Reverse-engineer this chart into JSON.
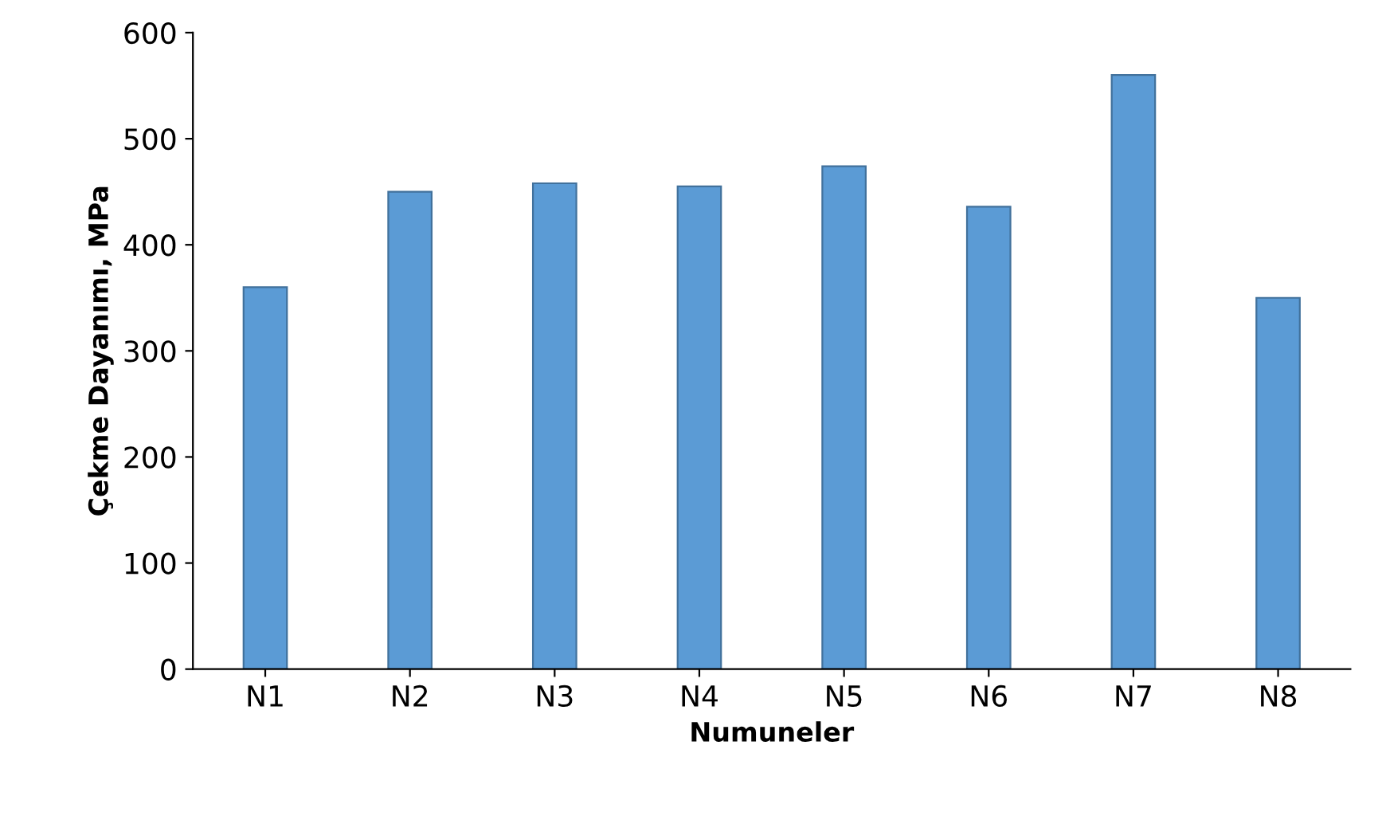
{
  "chart_data": {
    "type": "bar",
    "xlabel": "Numuneler",
    "ylabel": "Çekme Dayanımı, MPa",
    "categories": [
      "N1",
      "N2",
      "N3",
      "N4",
      "N5",
      "N6",
      "N7",
      "N8"
    ],
    "values": [
      360,
      450,
      458,
      455,
      474,
      436,
      560,
      350
    ],
    "color": "#5b9bd5",
    "ylim": [
      0,
      600
    ],
    "yticks": [
      0,
      100,
      200,
      300,
      400,
      500,
      600
    ],
    "grid": false,
    "legend": false
  }
}
